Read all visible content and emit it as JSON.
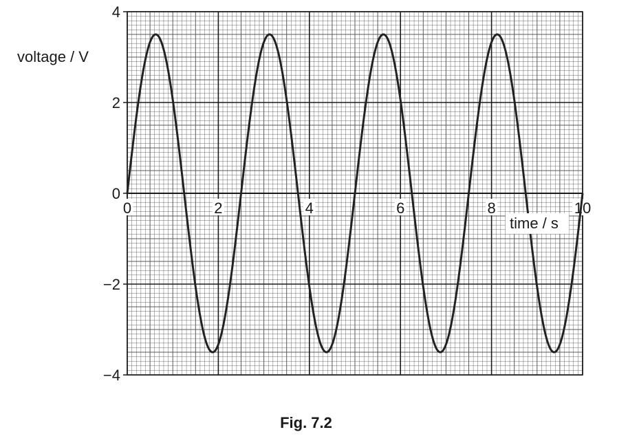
{
  "caption": "Fig. 7.2",
  "chart_data": {
    "type": "line",
    "xlabel": "time / s",
    "ylabel": "voltage / V",
    "xlim": [
      0,
      10
    ],
    "ylim": [
      -4,
      4
    ],
    "x_ticks": [
      "0",
      "2",
      "4",
      "6",
      "8",
      "10"
    ],
    "y_ticks": [
      "4",
      "2",
      "0",
      "−2",
      "−4"
    ],
    "x_tick_values": [
      0,
      2,
      4,
      6,
      8,
      10
    ],
    "y_tick_values": [
      4,
      2,
      0,
      -2,
      -4
    ],
    "grid": true,
    "series": [
      {
        "amplitude": 3.5,
        "period": 2.5,
        "x": [
          0,
          0.625,
          1.25,
          1.875,
          2.5,
          3.125,
          3.75,
          4.375,
          5.0,
          5.625,
          6.25,
          6.875,
          7.5,
          8.125,
          8.75,
          9.375,
          10.0
        ],
        "y": [
          0,
          3.5,
          0,
          -3.5,
          0,
          3.5,
          0,
          -3.5,
          0,
          3.5,
          0,
          -3.5,
          0,
          3.5,
          0,
          -3.5,
          0
        ]
      }
    ],
    "colors": {
      "line": "#222222",
      "grid_minor": "#5a5a5a",
      "grid_major": "#1a1a1a"
    }
  }
}
